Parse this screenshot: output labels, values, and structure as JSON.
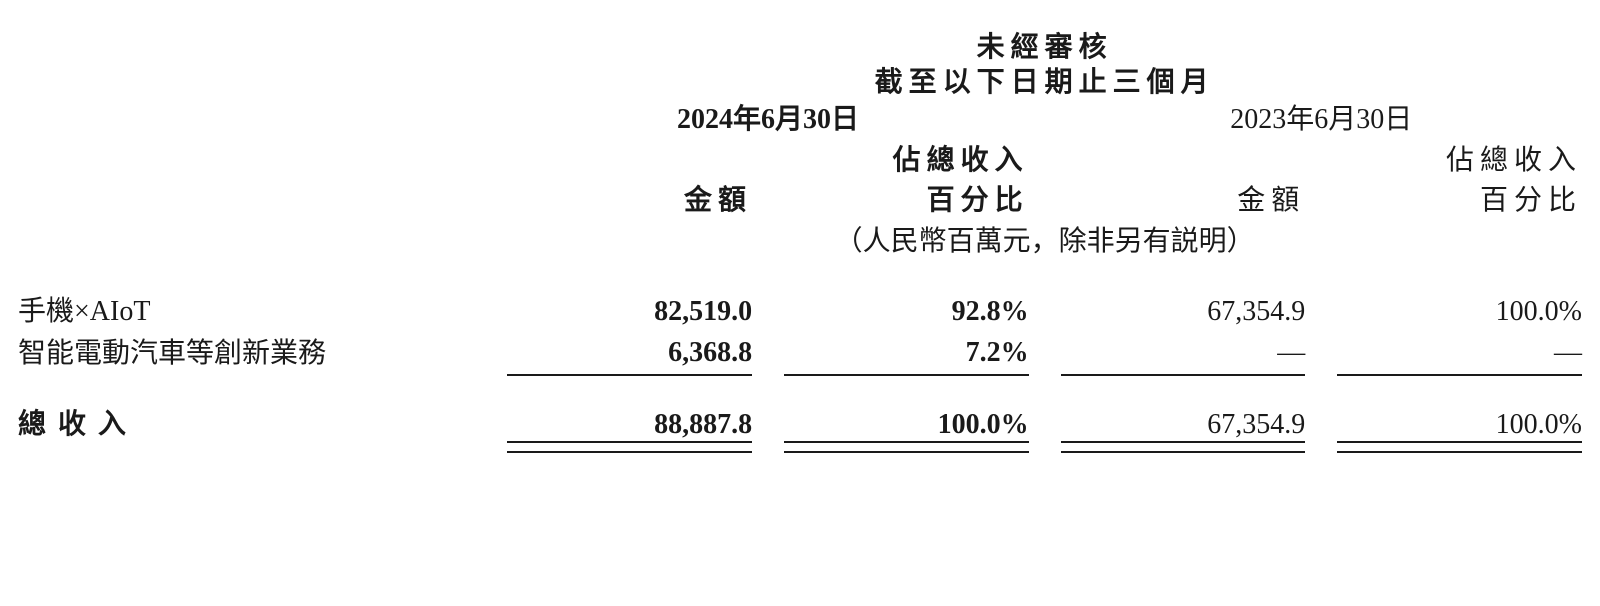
{
  "header": {
    "title1": "未經審核",
    "title2": "截至以下日期止三個月",
    "period_2024": "2024年6月30日",
    "period_2023": "2023年6月30日",
    "amount": "金額",
    "pct_line1": "佔總收入",
    "pct_line2": "百分比",
    "unit_note": "（人民幣百萬元，除非另有説明）"
  },
  "rows": {
    "r1": {
      "label": "手機×AIoT",
      "a2024": "82,519.0",
      "p2024": "92.8%",
      "a2023": "67,354.9",
      "p2023": "100.0%"
    },
    "r2": {
      "label": "智能電動汽車等創新業務",
      "a2024": "6,368.8",
      "p2024": "7.2%",
      "a2023": "—",
      "p2023": "—"
    },
    "total": {
      "label": "總收入",
      "a2024": "88,887.8",
      "p2024": "100.0%",
      "a2023": "67,354.9",
      "p2023": "100.0%"
    }
  }
}
